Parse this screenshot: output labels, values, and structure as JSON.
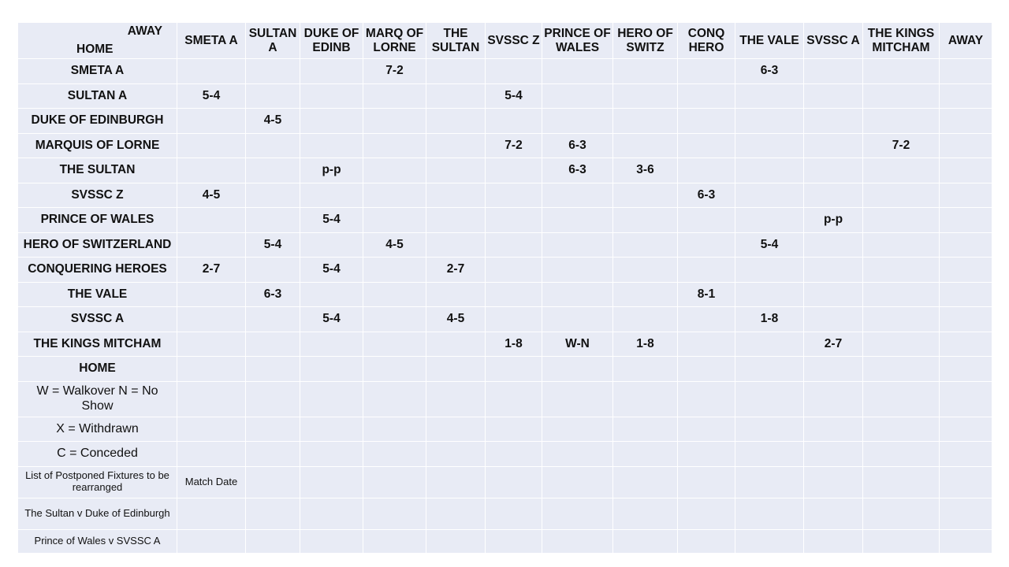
{
  "header": {
    "away_label": "AWAY",
    "home_label": "HOME",
    "columns": [
      "SMETA A",
      "SULTAN A",
      "DUKE OF EDINB",
      "MARQ OF LORNE",
      "THE SULTAN",
      "SVSSC Z",
      "PRINCE OF WALES",
      "HERO OF SWITZ",
      "CONQ HERO",
      "THE VALE",
      "SVSSC A",
      "THE KINGS MITCHAM",
      "AWAY"
    ]
  },
  "rows": [
    {
      "team": "SMETA A",
      "cells": [
        "",
        "",
        "",
        "7-2",
        "",
        "",
        "",
        "",
        "",
        "6-3",
        "",
        "",
        ""
      ]
    },
    {
      "team": "SULTAN A",
      "cells": [
        "5-4",
        "",
        "",
        "",
        "",
        "5-4",
        "",
        "",
        "",
        "",
        "",
        "",
        ""
      ]
    },
    {
      "team": "DUKE OF EDINBURGH",
      "cells": [
        "",
        "4-5",
        "",
        "",
        "",
        "",
        "",
        "",
        "",
        "",
        "",
        "",
        ""
      ]
    },
    {
      "team": "MARQUIS OF LORNE",
      "cells": [
        "",
        "",
        "",
        "",
        "",
        "7-2",
        "6-3",
        "",
        "",
        "",
        "",
        "7-2",
        ""
      ]
    },
    {
      "team": "THE SULTAN",
      "cells": [
        "",
        "",
        "p-p",
        "",
        "",
        "",
        "6-3",
        "3-6",
        "",
        "",
        "",
        "",
        ""
      ]
    },
    {
      "team": "SVSSC Z",
      "cells": [
        "4-5",
        "",
        "",
        "",
        "",
        "",
        "",
        "",
        "6-3",
        "",
        "",
        "",
        ""
      ]
    },
    {
      "team": "PRINCE OF WALES",
      "cells": [
        "",
        "",
        "5-4",
        "",
        "",
        "",
        "",
        "",
        "",
        "",
        "p-p",
        "",
        ""
      ]
    },
    {
      "team": "HERO OF SWITZERLAND",
      "cells": [
        "",
        "5-4",
        "",
        "4-5",
        "",
        "",
        "",
        "",
        "",
        "5-4",
        "",
        "",
        ""
      ]
    },
    {
      "team": "CONQUERING HEROES",
      "cells": [
        "2-7",
        "",
        "5-4",
        "",
        "2-7",
        "",
        "",
        "",
        "",
        "",
        "",
        "",
        ""
      ]
    },
    {
      "team": "THE VALE",
      "cells": [
        "",
        "6-3",
        "",
        "",
        "",
        "",
        "",
        "",
        "8-1",
        "",
        "",
        "",
        ""
      ]
    },
    {
      "team": "SVSSC A",
      "cells": [
        "",
        "",
        "5-4",
        "",
        "4-5",
        "",
        "",
        "",
        "",
        "1-8",
        "",
        "",
        ""
      ]
    },
    {
      "team": "THE KINGS MITCHAM",
      "cells": [
        "",
        "",
        "",
        "",
        "",
        "1-8",
        "W-N",
        "1-8",
        "",
        "",
        "2-7",
        "",
        ""
      ]
    }
  ],
  "footer_home": "HOME",
  "legend": {
    "walkover": "W = Walkover N = No Show",
    "withdrawn": "X = Withdrawn",
    "conceded": "C = Conceded"
  },
  "postponed": {
    "title": "List of Postponed Fixtures to be rearranged",
    "date_header": "Match Date",
    "fixtures": [
      "The Sultan v Duke of Edinburgh",
      "Prince of Wales v SVSSC A"
    ]
  }
}
